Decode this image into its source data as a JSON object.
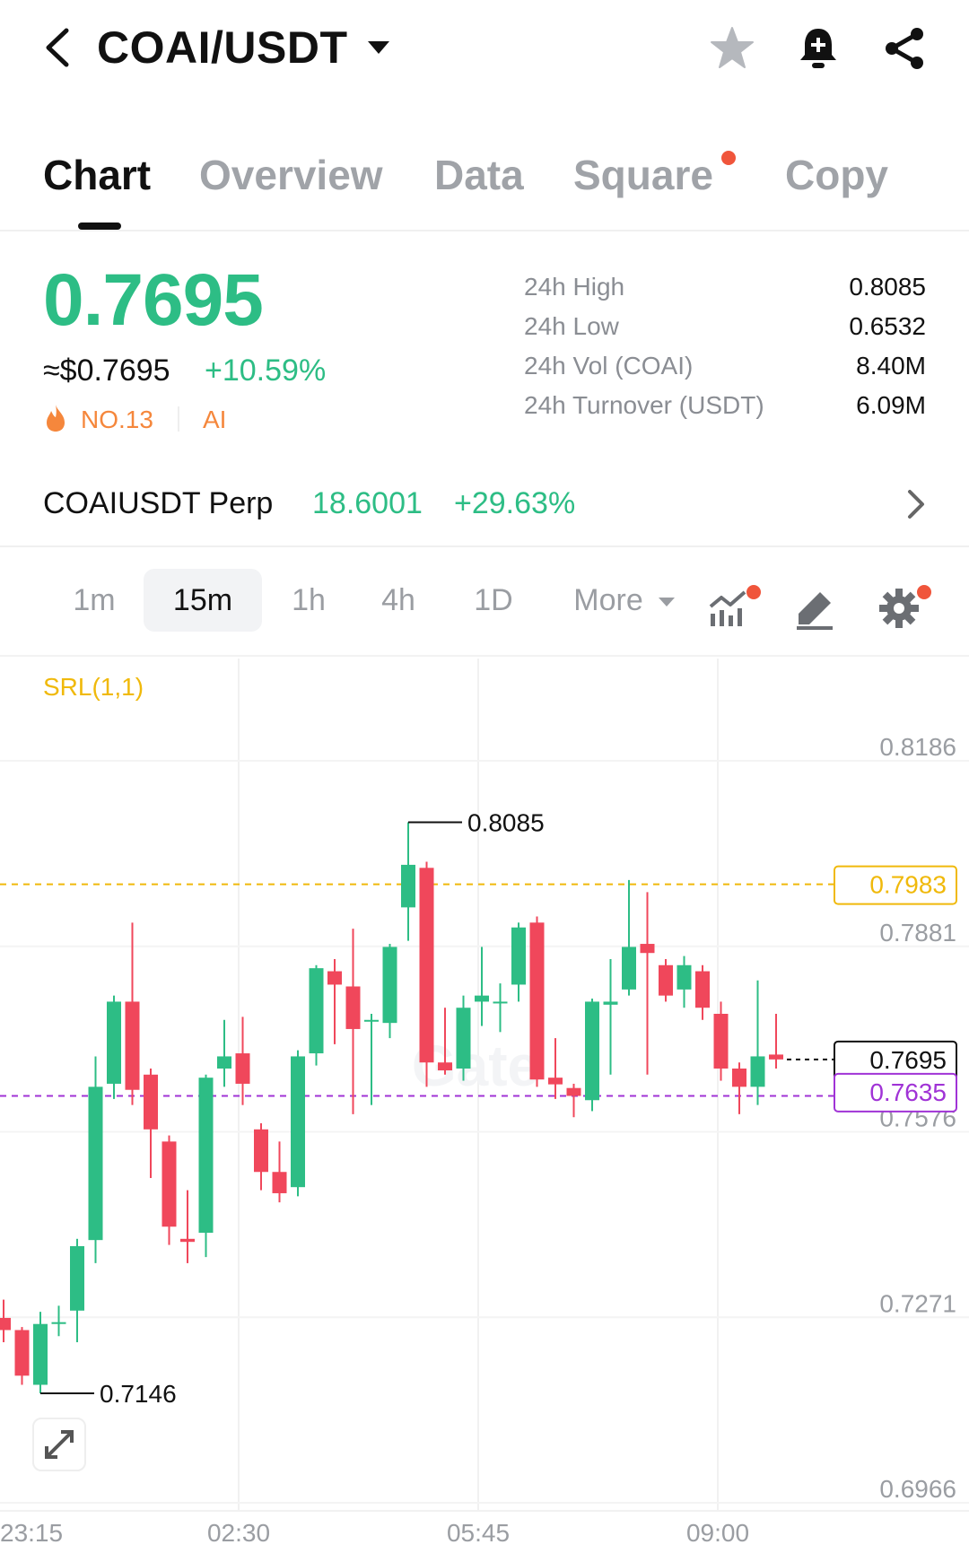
{
  "header": {
    "pair": "COAI/USDT",
    "icons": [
      "back-icon",
      "star-icon",
      "bell-plus-icon",
      "share-icon"
    ]
  },
  "tabs": [
    {
      "label": "Chart",
      "active": true
    },
    {
      "label": "Overview"
    },
    {
      "label": "Data"
    },
    {
      "label": "Square",
      "badge": true
    },
    {
      "label": "Copy"
    }
  ],
  "ticker": {
    "price": "0.7695",
    "approx": "≈$0.7695",
    "change": "+10.59%",
    "rank": "NO.13",
    "tag": "AI",
    "stats": [
      {
        "label": "24h High",
        "value": "0.8085"
      },
      {
        "label": "24h Low",
        "value": "0.6532"
      },
      {
        "label": "24h Vol (COAI)",
        "value": "8.40M"
      },
      {
        "label": "24h Turnover (USDT)",
        "value": "6.09M"
      }
    ]
  },
  "perp": {
    "name": "COAIUSDT Perp",
    "price": "18.6001",
    "change": "+29.63%"
  },
  "timeframes": {
    "items": [
      "1m",
      "15m",
      "1h",
      "4h",
      "1D"
    ],
    "active": "15m",
    "more": "More"
  },
  "colors": {
    "up": "#2dbd85",
    "down": "#f0475b",
    "srl": "#f0b90b",
    "purple": "#a033d6"
  },
  "chart_data": {
    "type": "candlestick",
    "indicator": "SRL(1,1)",
    "y_ticks": [
      "0.8186",
      "0.7881",
      "0.7576",
      "0.7271",
      "0.6966"
    ],
    "ylim": [
      0.6966,
      0.8186
    ],
    "x_ticks": [
      "23:15",
      "02:30",
      "05:45",
      "09:00"
    ],
    "high_label": "0.8085",
    "low_label": "0.7146",
    "srl_level": {
      "value": 0.7983,
      "label": "0.7983"
    },
    "last_price": {
      "value": 0.7695,
      "label": "0.7695"
    },
    "purple_level": {
      "value": 0.7635,
      "label": "0.7635"
    },
    "candles": [
      {
        "o": 0.727,
        "c": 0.725,
        "h": 0.73,
        "l": 0.723
      },
      {
        "o": 0.725,
        "c": 0.7175,
        "h": 0.7255,
        "l": 0.716
      },
      {
        "o": 0.716,
        "c": 0.726,
        "h": 0.728,
        "l": 0.7146
      },
      {
        "o": 0.726,
        "c": 0.7263,
        "h": 0.729,
        "l": 0.724
      },
      {
        "o": 0.7282,
        "c": 0.7388,
        "h": 0.74,
        "l": 0.723
      },
      {
        "o": 0.7398,
        "c": 0.765,
        "h": 0.77,
        "l": 0.736
      },
      {
        "o": 0.7655,
        "c": 0.779,
        "h": 0.78,
        "l": 0.763
      },
      {
        "o": 0.779,
        "c": 0.7645,
        "h": 0.792,
        "l": 0.762
      },
      {
        "o": 0.767,
        "c": 0.758,
        "h": 0.768,
        "l": 0.75
      },
      {
        "o": 0.756,
        "c": 0.742,
        "h": 0.757,
        "l": 0.739
      },
      {
        "o": 0.74,
        "c": 0.7395,
        "h": 0.748,
        "l": 0.736
      },
      {
        "o": 0.741,
        "c": 0.7665,
        "h": 0.767,
        "l": 0.737
      },
      {
        "o": 0.768,
        "c": 0.77,
        "h": 0.776,
        "l": 0.765
      },
      {
        "o": 0.7705,
        "c": 0.7655,
        "h": 0.7765,
        "l": 0.762
      },
      {
        "o": 0.758,
        "c": 0.751,
        "h": 0.759,
        "l": 0.748
      },
      {
        "o": 0.751,
        "c": 0.7475,
        "h": 0.756,
        "l": 0.746
      },
      {
        "o": 0.7485,
        "c": 0.77,
        "h": 0.771,
        "l": 0.747
      },
      {
        "o": 0.7705,
        "c": 0.7845,
        "h": 0.785,
        "l": 0.7685
      },
      {
        "o": 0.784,
        "c": 0.7818,
        "h": 0.786,
        "l": 0.772
      },
      {
        "o": 0.7815,
        "c": 0.7745,
        "h": 0.791,
        "l": 0.7605
      },
      {
        "o": 0.776,
        "c": 0.776,
        "h": 0.777,
        "l": 0.762
      },
      {
        "o": 0.7755,
        "c": 0.788,
        "h": 0.7885,
        "l": 0.773
      },
      {
        "o": 0.7945,
        "c": 0.8015,
        "h": 0.8085,
        "l": 0.789
      },
      {
        "o": 0.801,
        "c": 0.769,
        "h": 0.802,
        "l": 0.765
      },
      {
        "o": 0.769,
        "c": 0.7677,
        "h": 0.778,
        "l": 0.767
      },
      {
        "o": 0.768,
        "c": 0.778,
        "h": 0.78,
        "l": 0.766
      },
      {
        "o": 0.779,
        "c": 0.78,
        "h": 0.788,
        "l": 0.775
      },
      {
        "o": 0.779,
        "c": 0.779,
        "h": 0.782,
        "l": 0.774
      },
      {
        "o": 0.7818,
        "c": 0.7912,
        "h": 0.792,
        "l": 0.779
      },
      {
        "o": 0.792,
        "c": 0.7662,
        "h": 0.793,
        "l": 0.765
      },
      {
        "o": 0.7665,
        "c": 0.7654,
        "h": 0.773,
        "l": 0.763
      },
      {
        "o": 0.7648,
        "c": 0.7635,
        "h": 0.7655,
        "l": 0.76
      },
      {
        "o": 0.7628,
        "c": 0.779,
        "h": 0.7795,
        "l": 0.761
      },
      {
        "o": 0.7785,
        "c": 0.779,
        "h": 0.786,
        "l": 0.767
      },
      {
        "o": 0.781,
        "c": 0.788,
        "h": 0.799,
        "l": 0.78
      },
      {
        "o": 0.7885,
        "c": 0.787,
        "h": 0.797,
        "l": 0.767
      },
      {
        "o": 0.785,
        "c": 0.78,
        "h": 0.786,
        "l": 0.779
      },
      {
        "o": 0.781,
        "c": 0.785,
        "h": 0.7865,
        "l": 0.778
      },
      {
        "o": 0.784,
        "c": 0.778,
        "h": 0.785,
        "l": 0.776
      },
      {
        "o": 0.777,
        "c": 0.768,
        "h": 0.779,
        "l": 0.766
      },
      {
        "o": 0.768,
        "c": 0.765,
        "h": 0.769,
        "l": 0.7605
      },
      {
        "o": 0.765,
        "c": 0.77,
        "h": 0.7825,
        "l": 0.762
      },
      {
        "o": 0.7703,
        "c": 0.7695,
        "h": 0.777,
        "l": 0.768
      }
    ]
  }
}
